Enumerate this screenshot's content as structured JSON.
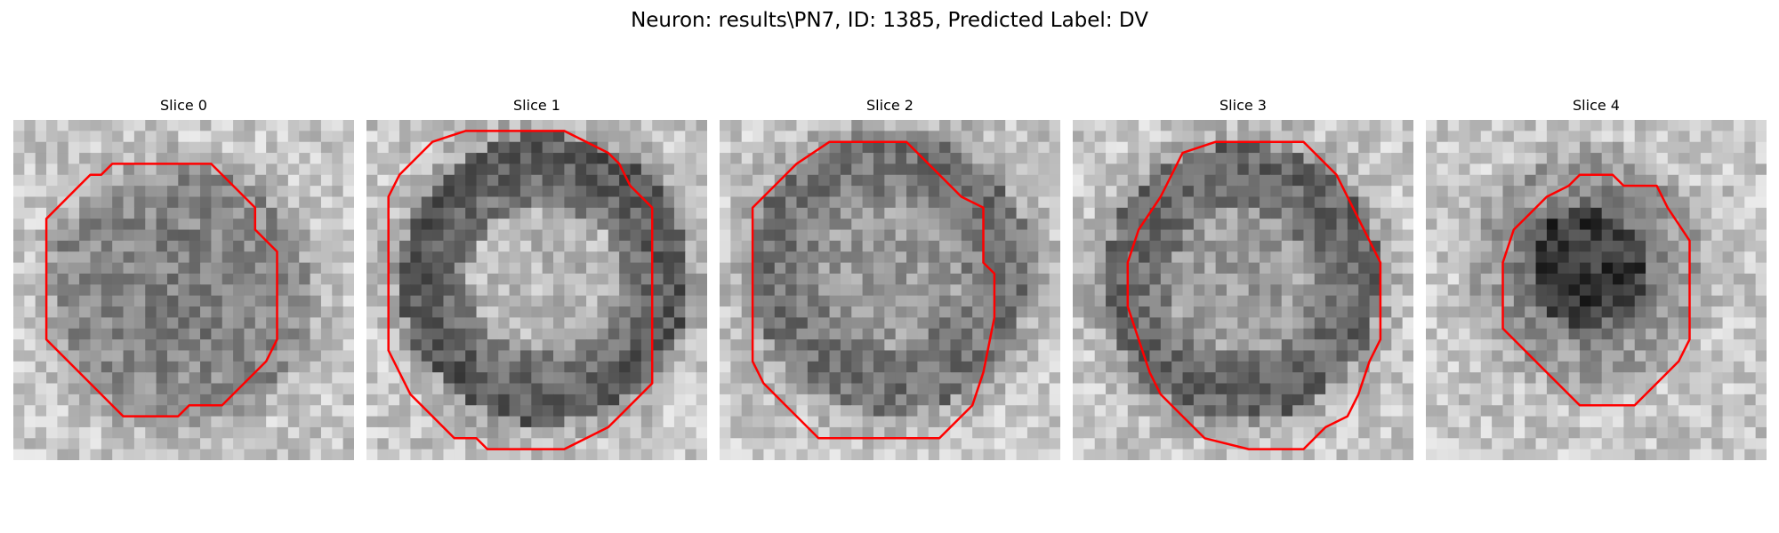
{
  "figure": {
    "title": "Neuron: results\\PN7, ID: 1385, Predicted Label: DV"
  },
  "panels": [
    {
      "title": "Slice 0"
    },
    {
      "title": "Slice 1"
    },
    {
      "title": "Slice 2"
    },
    {
      "title": "Slice 3"
    },
    {
      "title": "Slice 4"
    }
  ],
  "colors": {
    "contour": "#ff0000",
    "background": "#ffffff"
  }
}
